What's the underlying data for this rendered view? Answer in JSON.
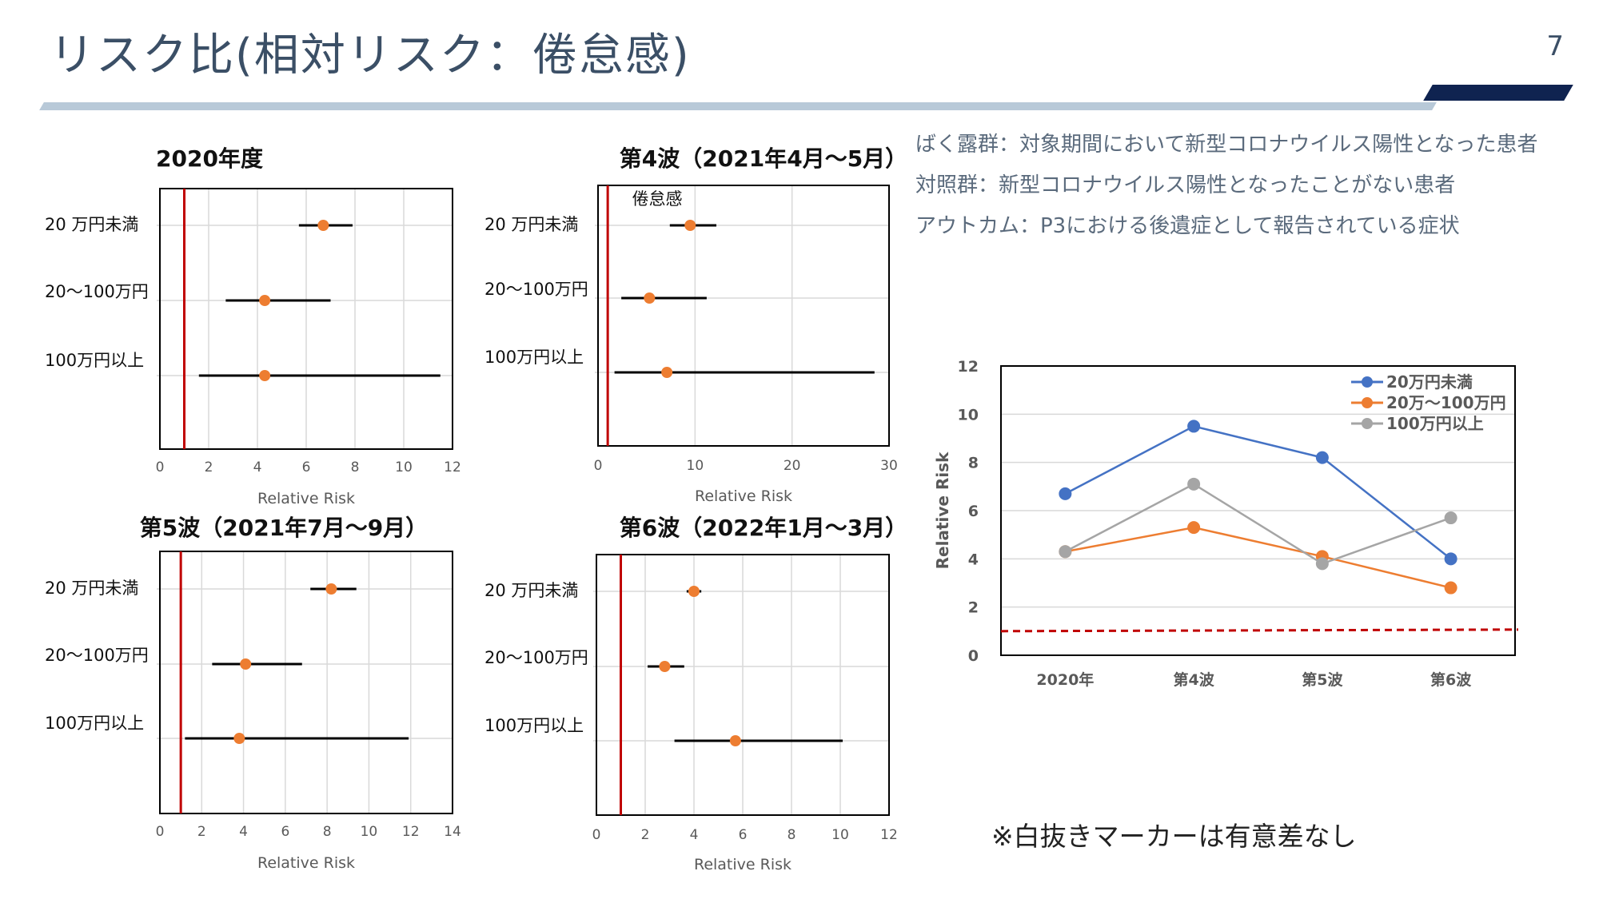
{
  "slide": {
    "title": "リスク比(相対リスク：倦怠感)",
    "page_number": "7",
    "notes": [
      "ばく露群：対象期間において新型コロナウイルス陽性となった患者",
      "対照群：新型コロナウイルス陽性となったことがない患者",
      "アウトカム：P3における後遺症として報告されている症状"
    ],
    "footnote": "※白抜きマーカーは有意差なし"
  },
  "chart_data": [
    {
      "type": "forest",
      "title": "2020年度",
      "xlabel": "Relative Risk",
      "xlim": [
        0,
        12
      ],
      "xticks": [
        "0",
        "2",
        "4",
        "6",
        "8",
        "10",
        "12"
      ],
      "reference_line": 1,
      "rows": [
        {
          "label": "20 万円未満",
          "estimate": 6.7,
          "lower": 5.7,
          "upper": 7.9
        },
        {
          "label": "20～100万円",
          "estimate": 4.3,
          "lower": 2.7,
          "upper": 7.0
        },
        {
          "label": "100万円以上",
          "estimate": 4.3,
          "lower": 1.6,
          "upper": 11.5
        }
      ]
    },
    {
      "type": "forest",
      "title": "第4波（2021年4月～5月）",
      "annotation": "倦怠感",
      "xlabel": "Relative Risk",
      "xlim": [
        0,
        30
      ],
      "xticks": [
        "0",
        "10",
        "20",
        "30"
      ],
      "reference_line": 1,
      "rows": [
        {
          "label": "20 万円未満",
          "estimate": 9.5,
          "lower": 7.4,
          "upper": 12.2
        },
        {
          "label": "20～100万円",
          "estimate": 5.3,
          "lower": 2.4,
          "upper": 11.2
        },
        {
          "label": "100万円以上",
          "estimate": 7.1,
          "lower": 1.7,
          "upper": 28.5
        }
      ]
    },
    {
      "type": "forest",
      "title": "第5波（2021年7月～9月）",
      "xlabel": "Relative Risk",
      "xlim": [
        0,
        14
      ],
      "xticks": [
        "0",
        "2",
        "4",
        "6",
        "8",
        "10",
        "12",
        "14"
      ],
      "reference_line": 1,
      "rows": [
        {
          "label": "20 万円未満",
          "estimate": 8.2,
          "lower": 7.2,
          "upper": 9.4
        },
        {
          "label": "20～100万円",
          "estimate": 4.1,
          "lower": 2.5,
          "upper": 6.8
        },
        {
          "label": "100万円以上",
          "estimate": 3.8,
          "lower": 1.2,
          "upper": 11.9
        }
      ]
    },
    {
      "type": "forest",
      "title": "第6波（2022年1月～3月）",
      "xlabel": "Relative Risk",
      "xlim": [
        0,
        12
      ],
      "xticks": [
        "0",
        "2",
        "4",
        "6",
        "8",
        "10",
        "12"
      ],
      "reference_line": 1,
      "rows": [
        {
          "label": "20 万円未満",
          "estimate": 4.0,
          "lower": 3.7,
          "upper": 4.3
        },
        {
          "label": "20～100万円",
          "estimate": 2.8,
          "lower": 2.1,
          "upper": 3.6
        },
        {
          "label": "100万円以上",
          "estimate": 5.7,
          "lower": 3.2,
          "upper": 10.1
        }
      ]
    },
    {
      "type": "line",
      "categories": [
        "2020年",
        "第4波",
        "第5波",
        "第6波"
      ],
      "ylabel": "Relative Risk",
      "ylim": [
        0,
        12
      ],
      "yticks": [
        "0",
        "2",
        "4",
        "6",
        "8",
        "10",
        "12"
      ],
      "reference_line": 1,
      "legend_position": "top-right",
      "series": [
        {
          "name": "20万円未満",
          "color": "#4472c4",
          "values": [
            6.7,
            9.5,
            8.2,
            4.0
          ]
        },
        {
          "name": "20万～100万円",
          "color": "#ed7d31",
          "values": [
            4.3,
            5.3,
            4.1,
            2.8
          ]
        },
        {
          "name": "100万円以上",
          "color": "#a5a5a5",
          "values": [
            4.3,
            7.1,
            3.8,
            5.7
          ]
        }
      ]
    }
  ]
}
